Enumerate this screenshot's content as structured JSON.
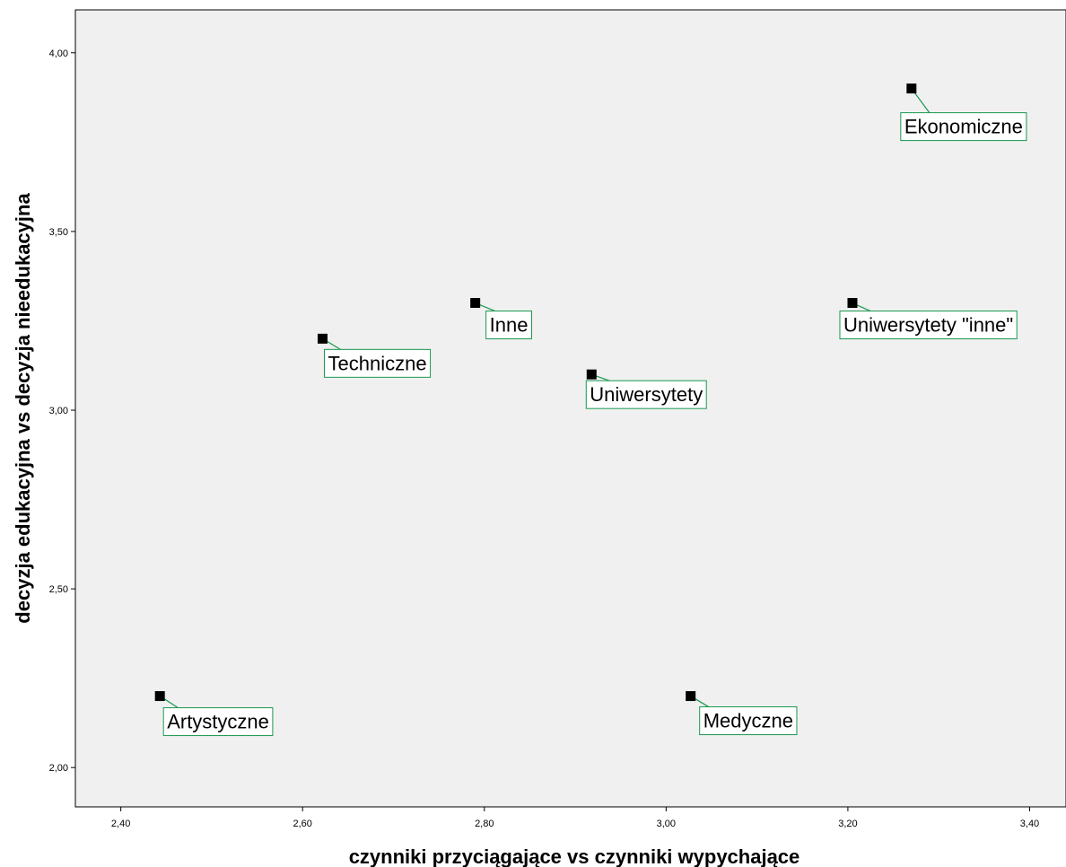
{
  "chart_data": {
    "type": "scatter",
    "title": "",
    "xlabel": "czynniki przyciągające vs czynniki wypychające",
    "ylabel": "decyzja edukacyjna vs decyzja nieedukacyjna",
    "xlim": [
      2.35,
      3.44
    ],
    "ylim": [
      1.89,
      4.12
    ],
    "x_ticks": [
      "2,40",
      "2,60",
      "2,80",
      "3,00",
      "3,20",
      "3,40"
    ],
    "x_tick_values": [
      2.4,
      2.6,
      2.8,
      3.0,
      3.2,
      3.4
    ],
    "y_ticks": [
      "2,00",
      "2,50",
      "3,00",
      "3,50",
      "4,00"
    ],
    "y_tick_values": [
      2.0,
      2.5,
      3.0,
      3.5,
      4.0
    ],
    "grid": false,
    "points": [
      {
        "label": "Ekonomiczne",
        "x": 3.27,
        "y": 3.9
      },
      {
        "label": "Inne",
        "x": 2.79,
        "y": 3.3
      },
      {
        "label": "Uniwersytety \"inne\"",
        "x": 3.205,
        "y": 3.3
      },
      {
        "label": "Techniczne",
        "x": 2.622,
        "y": 3.2
      },
      {
        "label": "Uniwersytety",
        "x": 2.918,
        "y": 3.1
      },
      {
        "label": "Artystyczne",
        "x": 2.443,
        "y": 2.2
      },
      {
        "label": "Medyczne",
        "x": 3.027,
        "y": 2.2
      }
    ],
    "colors": {
      "plot_background": "#f0f0f0",
      "marker": "#000000",
      "label_border": "#1a9850",
      "leader_line": "#1a9850",
      "label_background": "#ffffff"
    }
  }
}
